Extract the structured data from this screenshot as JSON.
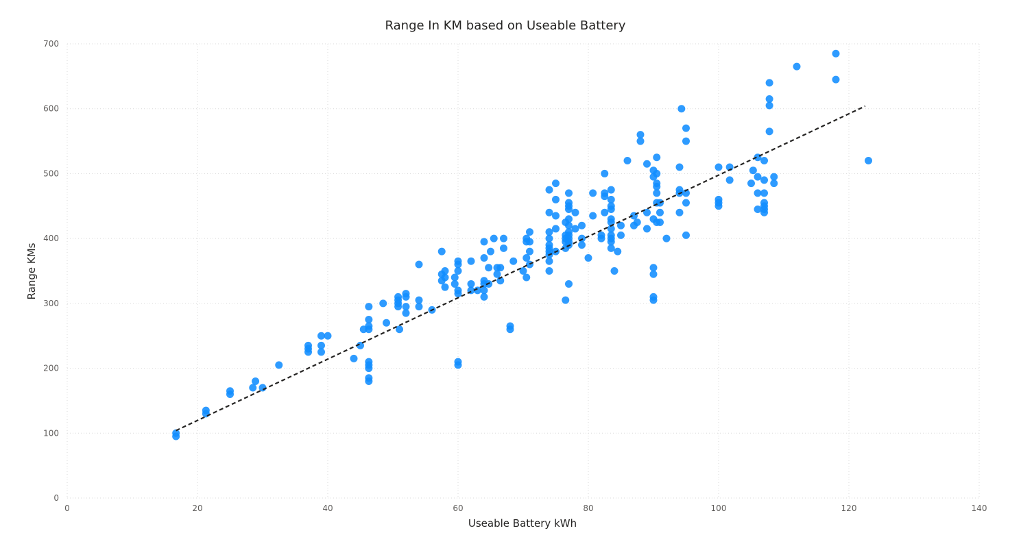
{
  "chart_data": {
    "type": "scatter",
    "title": "Range In KM based on Useable Battery",
    "xlabel": "Useable Battery kWh",
    "ylabel": "Range KMs",
    "xlim": [
      0,
      140
    ],
    "ylim": [
      0,
      700
    ],
    "xticks": [
      0,
      20,
      40,
      60,
      80,
      100,
      120,
      140
    ],
    "yticks": [
      0,
      100,
      200,
      300,
      400,
      500,
      600,
      700
    ],
    "grid": true,
    "point_color": "#118dff",
    "trendline": {
      "style": "dashed",
      "color": "#252423",
      "x": [
        16.7,
        122.5
      ],
      "y": [
        104,
        604
      ]
    },
    "points": [
      [
        16.7,
        95
      ],
      [
        16.7,
        100
      ],
      [
        21.3,
        130
      ],
      [
        21.3,
        135
      ],
      [
        25,
        160
      ],
      [
        25,
        165
      ],
      [
        28.5,
        170
      ],
      [
        28.9,
        180
      ],
      [
        30,
        170
      ],
      [
        32.5,
        205
      ],
      [
        37,
        225
      ],
      [
        37,
        230
      ],
      [
        37,
        235
      ],
      [
        39,
        225
      ],
      [
        39,
        235
      ],
      [
        39,
        250
      ],
      [
        40,
        250
      ],
      [
        44,
        215
      ],
      [
        45,
        235
      ],
      [
        45.5,
        260
      ],
      [
        46.3,
        180
      ],
      [
        46.3,
        185
      ],
      [
        46.3,
        200
      ],
      [
        46.3,
        205
      ],
      [
        46.3,
        210
      ],
      [
        46.3,
        260
      ],
      [
        46.3,
        265
      ],
      [
        46.3,
        275
      ],
      [
        46.3,
        295
      ],
      [
        48.5,
        300
      ],
      [
        49,
        270
      ],
      [
        50.8,
        295
      ],
      [
        50.8,
        300
      ],
      [
        50.8,
        305
      ],
      [
        50.8,
        310
      ],
      [
        51,
        260
      ],
      [
        52,
        285
      ],
      [
        52,
        295
      ],
      [
        52,
        310
      ],
      [
        52,
        315
      ],
      [
        54,
        295
      ],
      [
        54,
        305
      ],
      [
        54,
        360
      ],
      [
        56,
        290
      ],
      [
        57.5,
        335
      ],
      [
        57.5,
        345
      ],
      [
        57.5,
        380
      ],
      [
        58,
        325
      ],
      [
        58,
        340
      ],
      [
        58,
        350
      ],
      [
        59.5,
        330
      ],
      [
        59.5,
        340
      ],
      [
        60,
        205
      ],
      [
        60,
        210
      ],
      [
        60,
        315
      ],
      [
        60,
        320
      ],
      [
        60,
        350
      ],
      [
        60,
        360
      ],
      [
        60,
        365
      ],
      [
        62,
        320
      ],
      [
        62,
        330
      ],
      [
        62,
        365
      ],
      [
        63,
        320
      ],
      [
        64,
        310
      ],
      [
        64,
        320
      ],
      [
        64,
        330
      ],
      [
        64,
        335
      ],
      [
        64,
        370
      ],
      [
        64,
        395
      ],
      [
        64.7,
        330
      ],
      [
        64.7,
        355
      ],
      [
        65,
        380
      ],
      [
        65.5,
        400
      ],
      [
        66,
        345
      ],
      [
        66,
        355
      ],
      [
        66.5,
        335
      ],
      [
        66.5,
        355
      ],
      [
        67,
        385
      ],
      [
        67,
        400
      ],
      [
        68,
        260
      ],
      [
        68,
        265
      ],
      [
        68.5,
        365
      ],
      [
        70,
        350
      ],
      [
        70.5,
        340
      ],
      [
        70.5,
        370
      ],
      [
        70.5,
        395
      ],
      [
        70.5,
        400
      ],
      [
        71,
        360
      ],
      [
        71,
        380
      ],
      [
        71,
        395
      ],
      [
        71,
        410
      ],
      [
        74,
        350
      ],
      [
        74,
        365
      ],
      [
        74,
        375
      ],
      [
        74,
        380
      ],
      [
        74,
        385
      ],
      [
        74,
        390
      ],
      [
        74,
        400
      ],
      [
        74,
        410
      ],
      [
        74,
        440
      ],
      [
        74,
        475
      ],
      [
        75,
        380
      ],
      [
        75,
        415
      ],
      [
        75,
        435
      ],
      [
        75,
        460
      ],
      [
        75,
        485
      ],
      [
        76.5,
        305
      ],
      [
        76.5,
        385
      ],
      [
        76.5,
        395
      ],
      [
        76.5,
        400
      ],
      [
        76.5,
        405
      ],
      [
        76.5,
        425
      ],
      [
        77,
        330
      ],
      [
        77,
        390
      ],
      [
        77,
        395
      ],
      [
        77,
        400
      ],
      [
        77,
        405
      ],
      [
        77,
        410
      ],
      [
        77,
        420
      ],
      [
        77,
        430
      ],
      [
        77,
        445
      ],
      [
        77,
        450
      ],
      [
        77,
        455
      ],
      [
        77,
        470
      ],
      [
        78,
        415
      ],
      [
        78,
        440
      ],
      [
        79,
        390
      ],
      [
        79,
        400
      ],
      [
        79,
        420
      ],
      [
        80,
        370
      ],
      [
        80.7,
        435
      ],
      [
        80.7,
        470
      ],
      [
        82,
        400
      ],
      [
        82,
        405
      ],
      [
        82.5,
        440
      ],
      [
        82.5,
        465
      ],
      [
        82.5,
        470
      ],
      [
        82.5,
        500
      ],
      [
        83.5,
        385
      ],
      [
        83.5,
        395
      ],
      [
        83.5,
        400
      ],
      [
        83.5,
        405
      ],
      [
        83.5,
        415
      ],
      [
        83.5,
        425
      ],
      [
        83.5,
        430
      ],
      [
        83.5,
        445
      ],
      [
        83.5,
        450
      ],
      [
        83.5,
        460
      ],
      [
        83.5,
        475
      ],
      [
        84,
        350
      ],
      [
        84.5,
        380
      ],
      [
        85,
        405
      ],
      [
        85,
        420
      ],
      [
        86,
        520
      ],
      [
        87,
        420
      ],
      [
        87,
        435
      ],
      [
        87.5,
        425
      ],
      [
        88,
        550
      ],
      [
        88,
        560
      ],
      [
        89,
        415
      ],
      [
        89,
        440
      ],
      [
        89,
        515
      ],
      [
        90,
        305
      ],
      [
        90,
        310
      ],
      [
        90,
        345
      ],
      [
        90,
        355
      ],
      [
        90,
        430
      ],
      [
        90,
        495
      ],
      [
        90,
        505
      ],
      [
        90.5,
        425
      ],
      [
        90.5,
        455
      ],
      [
        90.5,
        470
      ],
      [
        90.5,
        480
      ],
      [
        90.5,
        485
      ],
      [
        90.5,
        500
      ],
      [
        90.5,
        525
      ],
      [
        91,
        425
      ],
      [
        91,
        440
      ],
      [
        91,
        455
      ],
      [
        92,
        400
      ],
      [
        94,
        440
      ],
      [
        94,
        470
      ],
      [
        94,
        475
      ],
      [
        94,
        510
      ],
      [
        94.3,
        600
      ],
      [
        95,
        405
      ],
      [
        95,
        455
      ],
      [
        95,
        470
      ],
      [
        95,
        550
      ],
      [
        95,
        570
      ],
      [
        100,
        450
      ],
      [
        100,
        455
      ],
      [
        100,
        460
      ],
      [
        100,
        510
      ],
      [
        101.7,
        490
      ],
      [
        101.7,
        510
      ],
      [
        105,
        485
      ],
      [
        105.3,
        505
      ],
      [
        106,
        445
      ],
      [
        106,
        470
      ],
      [
        106,
        495
      ],
      [
        106,
        525
      ],
      [
        107,
        440
      ],
      [
        107,
        445
      ],
      [
        107,
        450
      ],
      [
        107,
        455
      ],
      [
        107,
        470
      ],
      [
        107,
        490
      ],
      [
        107,
        520
      ],
      [
        107.8,
        565
      ],
      [
        107.8,
        605
      ],
      [
        107.8,
        615
      ],
      [
        107.8,
        640
      ],
      [
        108.5,
        485
      ],
      [
        108.5,
        495
      ],
      [
        112,
        665
      ],
      [
        118,
        645
      ],
      [
        118,
        685
      ],
      [
        123,
        520
      ]
    ]
  }
}
